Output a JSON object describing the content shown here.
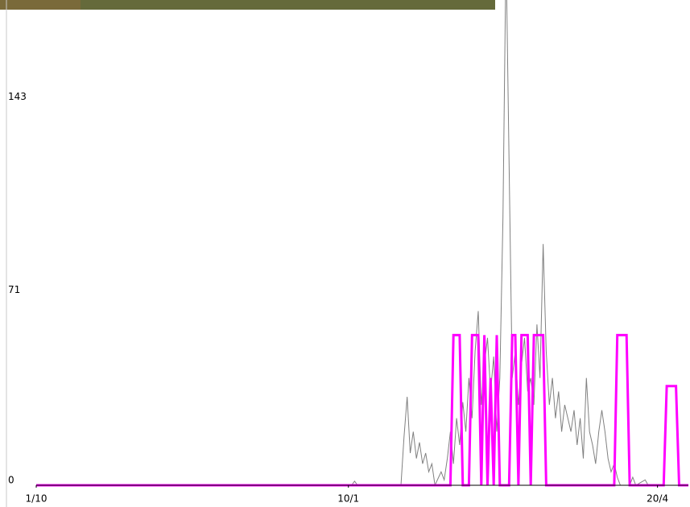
{
  "chart_data": {
    "type": "line",
    "xlim": [
      0,
      211
    ],
    "xticks": [
      {
        "value": 0,
        "label": "1/10"
      },
      {
        "value": 101,
        "label": "10/1"
      },
      {
        "value": 201,
        "label": "20/4"
      }
    ],
    "ylim": [
      0,
      181
    ],
    "yticks": [
      0,
      71,
      143
    ],
    "series": [
      {
        "color": "#808080",
        "x": [
          0,
          102,
          103,
          104,
          118,
          119,
          120,
          121,
          122,
          123,
          124,
          125,
          126,
          127,
          128,
          129,
          131,
          132,
          133,
          134,
          135,
          136,
          137,
          138,
          139,
          140,
          141,
          142,
          143,
          144,
          145,
          146,
          147,
          148,
          149,
          150,
          151,
          152,
          153,
          154,
          155,
          156,
          157,
          158,
          159,
          160,
          161,
          162,
          163,
          164,
          165,
          166,
          167,
          168,
          169,
          170,
          171,
          172,
          173,
          174,
          175,
          176,
          177,
          178,
          179,
          180,
          181,
          182,
          183,
          184,
          185,
          186,
          187,
          188,
          189,
          192,
          193,
          194,
          197,
          198,
          211
        ],
        "values": [
          0,
          0,
          1.5,
          0,
          0,
          18,
          33,
          12,
          20,
          10,
          16,
          8,
          12,
          5,
          8,
          0,
          5,
          2,
          10,
          20,
          8,
          25,
          15,
          31,
          20,
          40,
          25,
          50,
          65,
          30,
          45,
          55,
          35,
          48,
          20,
          40,
          100,
          200,
          120,
          40,
          50,
          30,
          45,
          55,
          35,
          40,
          30,
          60,
          40,
          90,
          50,
          30,
          40,
          25,
          35,
          20,
          30,
          25,
          20,
          28,
          15,
          25,
          10,
          40,
          20,
          15,
          8,
          20,
          28,
          20,
          10,
          5,
          8,
          3,
          0,
          0,
          3,
          0,
          2,
          0,
          0
        ]
      },
      {
        "color": "#ff00ff",
        "x": [
          0,
          134,
          135,
          137,
          138,
          140,
          141,
          143,
          144,
          145,
          146,
          147,
          148,
          149,
          150,
          153,
          154,
          155,
          156,
          157,
          159,
          160,
          161,
          164,
          165,
          187,
          188,
          191,
          192,
          203,
          204,
          207,
          208,
          211
        ],
        "values": [
          0,
          0,
          56,
          56,
          0,
          0,
          56,
          56,
          0,
          56,
          0,
          40,
          0,
          56,
          0,
          0,
          56,
          56,
          0,
          56,
          56,
          0,
          56,
          56,
          0,
          0,
          56,
          56,
          0,
          0,
          37,
          37,
          0,
          0
        ]
      }
    ]
  }
}
